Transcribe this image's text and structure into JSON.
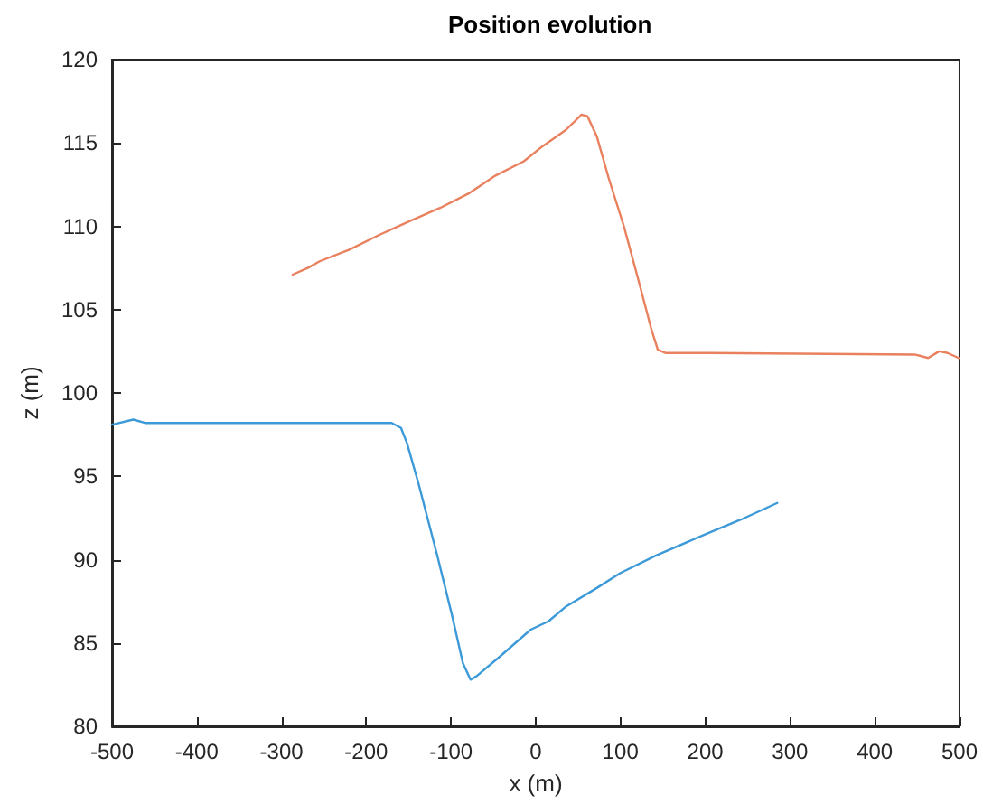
{
  "chart_data": {
    "type": "line",
    "title": "Position evolution",
    "xlabel": "x (m)",
    "ylabel": "z (m)",
    "xlim": [
      -500,
      500
    ],
    "xticks": [
      -500,
      -400,
      -300,
      -200,
      -100,
      0,
      100,
      200,
      300,
      400,
      500
    ],
    "ylim": [
      80,
      120
    ],
    "yticks": [
      80,
      85,
      90,
      95,
      100,
      105,
      110,
      115,
      120
    ],
    "grid": false,
    "marker": "none",
    "line_style": "solid",
    "series": [
      {
        "color": "#3d9ad8",
        "x": [
          -500,
          -475,
          -461,
          -450,
          -300,
          -170,
          -159,
          -152,
          -138,
          -116,
          -99,
          -86,
          -77,
          -70,
          -42,
          -6,
          15,
          36,
          72,
          100,
          142,
          199,
          242,
          285
        ],
        "values": [
          98.1,
          98.4,
          98.2,
          98.2,
          98.2,
          98.2,
          97.9,
          97.0,
          94.5,
          90.2,
          86.7,
          83.8,
          82.8,
          83.0,
          84.2,
          85.8,
          86.3,
          87.2,
          88.3,
          89.2,
          90.25,
          91.5,
          92.4,
          93.4
        ]
      },
      {
        "color": "#e9805e",
        "x": [
          -287,
          -269,
          -255,
          -220,
          -184,
          -149,
          -113,
          -78,
          -49,
          -14,
          8,
          36,
          54,
          61,
          72,
          86,
          104,
          121,
          136,
          144,
          153,
          206,
          448,
          463,
          476,
          486,
          499
        ],
        "values": [
          107.1,
          107.5,
          107.9,
          108.6,
          109.5,
          110.3,
          111.1,
          112.0,
          113.0,
          113.9,
          114.8,
          115.8,
          116.7,
          116.6,
          115.4,
          112.9,
          110.0,
          106.8,
          103.9,
          102.6,
          102.4,
          102.4,
          102.3,
          102.1,
          102.5,
          102.4,
          102.1
        ]
      }
    ]
  }
}
